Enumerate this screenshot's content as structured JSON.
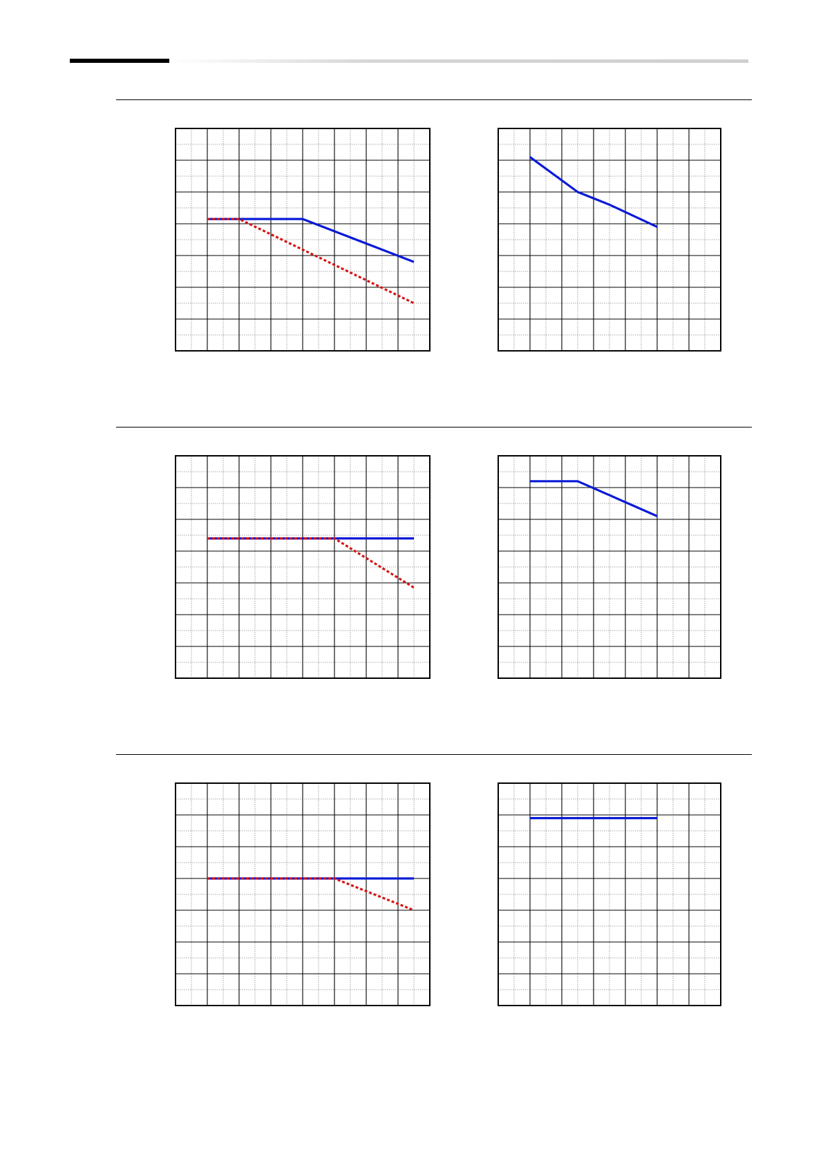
{
  "header": {
    "bar_color": "#000000",
    "fade_color": "#cfcfcf"
  },
  "colors": {
    "solid": "#0a1ad6",
    "dashed": "#d61414",
    "grid_major": "#000000",
    "grid_minor": "#8c8c8c"
  },
  "chart_data": [
    {
      "type": "line",
      "title": "",
      "xlabel": "",
      "ylabel": "",
      "xlim": [
        0,
        16
      ],
      "ylim": [
        0,
        7
      ],
      "grid": true,
      "x_major": 8,
      "x_minor": 16,
      "y_major": 7,
      "y_minor": 14,
      "series": [
        {
          "style": "solid",
          "x": [
            2,
            8,
            15
          ],
          "y": [
            4.15,
            4.15,
            2.8
          ]
        },
        {
          "style": "dashed",
          "x": [
            2,
            4,
            15
          ],
          "y": [
            4.15,
            4.15,
            1.5
          ]
        }
      ]
    },
    {
      "type": "line",
      "title": "",
      "xlabel": "",
      "ylabel": "",
      "xlim": [
        0,
        14
      ],
      "ylim": [
        0,
        7
      ],
      "grid": true,
      "x_major": 7,
      "x_minor": 14,
      "y_major": 7,
      "y_minor": 14,
      "series": [
        {
          "style": "solid",
          "x": [
            2,
            5,
            7,
            10
          ],
          "y": [
            6.1,
            5.0,
            4.6,
            3.9
          ]
        }
      ]
    },
    {
      "type": "line",
      "title": "",
      "xlabel": "",
      "ylabel": "",
      "xlim": [
        0,
        16
      ],
      "ylim": [
        0,
        7
      ],
      "grid": true,
      "x_major": 8,
      "x_minor": 16,
      "y_major": 7,
      "y_minor": 14,
      "series": [
        {
          "style": "solid",
          "x": [
            2,
            10,
            15
          ],
          "y": [
            4.4,
            4.4,
            4.4
          ]
        },
        {
          "style": "dashed",
          "x": [
            2,
            10,
            15
          ],
          "y": [
            4.4,
            4.4,
            2.85
          ]
        }
      ]
    },
    {
      "type": "line",
      "title": "",
      "xlabel": "",
      "ylabel": "",
      "xlim": [
        0,
        14
      ],
      "ylim": [
        0,
        7
      ],
      "grid": true,
      "x_major": 7,
      "x_minor": 14,
      "y_major": 7,
      "y_minor": 14,
      "series": [
        {
          "style": "solid",
          "x": [
            2,
            5,
            10
          ],
          "y": [
            6.2,
            6.2,
            5.1
          ]
        }
      ]
    },
    {
      "type": "line",
      "title": "",
      "xlabel": "",
      "ylabel": "",
      "xlim": [
        0,
        16
      ],
      "ylim": [
        0,
        7
      ],
      "grid": true,
      "x_major": 8,
      "x_minor": 16,
      "y_major": 7,
      "y_minor": 14,
      "series": [
        {
          "style": "solid",
          "x": [
            2,
            10,
            15
          ],
          "y": [
            4.0,
            4.0,
            4.0
          ]
        },
        {
          "style": "dashed",
          "x": [
            2,
            10,
            15
          ],
          "y": [
            4.0,
            4.0,
            3.0
          ]
        }
      ]
    },
    {
      "type": "line",
      "title": "",
      "xlabel": "",
      "ylabel": "",
      "xlim": [
        0,
        14
      ],
      "ylim": [
        0,
        7
      ],
      "grid": true,
      "x_major": 7,
      "x_minor": 14,
      "y_major": 7,
      "y_minor": 14,
      "series": [
        {
          "style": "solid",
          "x": [
            2,
            10
          ],
          "y": [
            5.9,
            5.9
          ]
        }
      ]
    }
  ]
}
